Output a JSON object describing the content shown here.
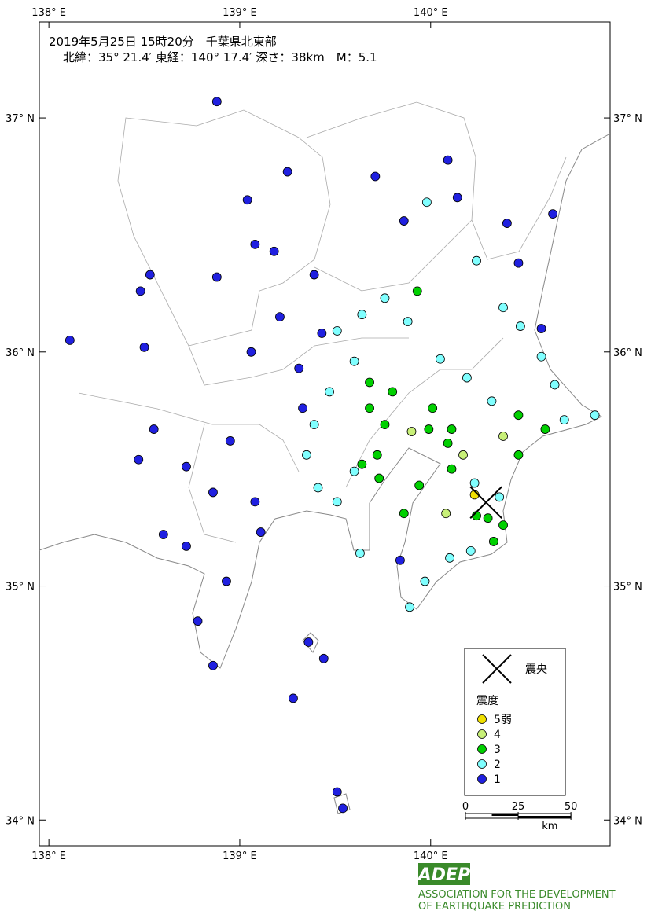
{
  "header": {
    "line1": "2019年5月25日 15時20分　千葉県北東部",
    "line2": "北緯：35° 21.4′ 東経：140° 17.4′ 深さ：38km　M：5.1"
  },
  "map": {
    "xlim": [
      137.95,
      140.94
    ],
    "ylim": [
      33.89,
      37.41
    ],
    "xticks": [
      {
        "value": 138,
        "label": "138° E"
      },
      {
        "value": 139,
        "label": "139° E"
      },
      {
        "value": 140,
        "label": "140° E"
      }
    ],
    "yticks": [
      {
        "value": 37,
        "label": "37° N"
      },
      {
        "value": 36,
        "label": "36° N"
      },
      {
        "value": 35,
        "label": "35° N"
      },
      {
        "value": 34,
        "label": "34° N"
      }
    ],
    "epicenter": {
      "lon": 140.29,
      "lat": 35.357
    },
    "stations": [
      {
        "lon": 138.88,
        "lat": 37.07,
        "intensity": "1"
      },
      {
        "lon": 139.25,
        "lat": 36.77,
        "intensity": "1"
      },
      {
        "lon": 139.71,
        "lat": 36.75,
        "intensity": "1"
      },
      {
        "lon": 140.09,
        "lat": 36.82,
        "intensity": "1"
      },
      {
        "lon": 140.14,
        "lat": 36.66,
        "intensity": "1"
      },
      {
        "lon": 139.04,
        "lat": 36.65,
        "intensity": "1"
      },
      {
        "lon": 139.08,
        "lat": 36.46,
        "intensity": "1"
      },
      {
        "lon": 139.18,
        "lat": 36.43,
        "intensity": "1"
      },
      {
        "lon": 138.53,
        "lat": 36.33,
        "intensity": "1"
      },
      {
        "lon": 138.48,
        "lat": 36.26,
        "intensity": "1"
      },
      {
        "lon": 138.88,
        "lat": 36.32,
        "intensity": "1"
      },
      {
        "lon": 138.11,
        "lat": 36.05,
        "intensity": "1"
      },
      {
        "lon": 138.5,
        "lat": 36.02,
        "intensity": "1"
      },
      {
        "lon": 139.06,
        "lat": 36.0,
        "intensity": "1"
      },
      {
        "lon": 139.21,
        "lat": 36.15,
        "intensity": "1"
      },
      {
        "lon": 139.86,
        "lat": 36.56,
        "intensity": "1"
      },
      {
        "lon": 140.4,
        "lat": 36.55,
        "intensity": "1"
      },
      {
        "lon": 140.64,
        "lat": 36.59,
        "intensity": "1"
      },
      {
        "lon": 140.46,
        "lat": 36.38,
        "intensity": "1"
      },
      {
        "lon": 140.58,
        "lat": 36.1,
        "intensity": "1"
      },
      {
        "lon": 138.55,
        "lat": 35.67,
        "intensity": "1"
      },
      {
        "lon": 138.47,
        "lat": 35.54,
        "intensity": "1"
      },
      {
        "lon": 138.72,
        "lat": 35.51,
        "intensity": "1"
      },
      {
        "lon": 138.86,
        "lat": 35.4,
        "intensity": "1"
      },
      {
        "lon": 138.95,
        "lat": 35.62,
        "intensity": "1"
      },
      {
        "lon": 139.08,
        "lat": 35.36,
        "intensity": "1"
      },
      {
        "lon": 138.6,
        "lat": 35.22,
        "intensity": "1"
      },
      {
        "lon": 138.72,
        "lat": 35.17,
        "intensity": "1"
      },
      {
        "lon": 139.11,
        "lat": 35.23,
        "intensity": "1"
      },
      {
        "lon": 138.93,
        "lat": 35.02,
        "intensity": "1"
      },
      {
        "lon": 138.78,
        "lat": 34.85,
        "intensity": "1"
      },
      {
        "lon": 138.86,
        "lat": 34.66,
        "intensity": "1"
      },
      {
        "lon": 139.36,
        "lat": 34.76,
        "intensity": "1"
      },
      {
        "lon": 139.44,
        "lat": 34.69,
        "intensity": "1"
      },
      {
        "lon": 139.28,
        "lat": 34.52,
        "intensity": "1"
      },
      {
        "lon": 139.51,
        "lat": 34.12,
        "intensity": "1"
      },
      {
        "lon": 139.54,
        "lat": 34.05,
        "intensity": "1"
      },
      {
        "lon": 139.84,
        "lat": 35.11,
        "intensity": "1"
      },
      {
        "lon": 139.39,
        "lat": 36.33,
        "intensity": "1"
      },
      {
        "lon": 139.43,
        "lat": 36.08,
        "intensity": "1"
      },
      {
        "lon": 139.31,
        "lat": 35.93,
        "intensity": "1"
      },
      {
        "lon": 139.33,
        "lat": 35.76,
        "intensity": "1"
      },
      {
        "lon": 139.98,
        "lat": 36.64,
        "intensity": "2"
      },
      {
        "lon": 140.24,
        "lat": 36.39,
        "intensity": "2"
      },
      {
        "lon": 140.38,
        "lat": 36.19,
        "intensity": "2"
      },
      {
        "lon": 140.47,
        "lat": 36.11,
        "intensity": "2"
      },
      {
        "lon": 140.58,
        "lat": 35.98,
        "intensity": "2"
      },
      {
        "lon": 140.65,
        "lat": 35.86,
        "intensity": "2"
      },
      {
        "lon": 140.7,
        "lat": 35.71,
        "intensity": "2"
      },
      {
        "lon": 140.86,
        "lat": 35.73,
        "intensity": "2"
      },
      {
        "lon": 140.32,
        "lat": 35.79,
        "intensity": "2"
      },
      {
        "lon": 140.19,
        "lat": 35.89,
        "intensity": "2"
      },
      {
        "lon": 140.05,
        "lat": 35.97,
        "intensity": "2"
      },
      {
        "lon": 139.88,
        "lat": 36.13,
        "intensity": "2"
      },
      {
        "lon": 139.76,
        "lat": 36.23,
        "intensity": "2"
      },
      {
        "lon": 139.64,
        "lat": 36.16,
        "intensity": "2"
      },
      {
        "lon": 139.51,
        "lat": 36.09,
        "intensity": "2"
      },
      {
        "lon": 139.6,
        "lat": 35.96,
        "intensity": "2"
      },
      {
        "lon": 139.47,
        "lat": 35.83,
        "intensity": "2"
      },
      {
        "lon": 139.39,
        "lat": 35.69,
        "intensity": "2"
      },
      {
        "lon": 139.35,
        "lat": 35.56,
        "intensity": "2"
      },
      {
        "lon": 139.41,
        "lat": 35.42,
        "intensity": "2"
      },
      {
        "lon": 139.51,
        "lat": 35.36,
        "intensity": "2"
      },
      {
        "lon": 139.6,
        "lat": 35.49,
        "intensity": "2"
      },
      {
        "lon": 139.63,
        "lat": 35.14,
        "intensity": "2"
      },
      {
        "lon": 139.89,
        "lat": 34.91,
        "intensity": "2"
      },
      {
        "lon": 139.97,
        "lat": 35.02,
        "intensity": "2"
      },
      {
        "lon": 140.1,
        "lat": 35.12,
        "intensity": "2"
      },
      {
        "lon": 140.21,
        "lat": 35.15,
        "intensity": "2"
      },
      {
        "lon": 140.36,
        "lat": 35.38,
        "intensity": "2"
      },
      {
        "lon": 140.23,
        "lat": 35.44,
        "intensity": "2"
      },
      {
        "lon": 139.93,
        "lat": 36.26,
        "intensity": "3"
      },
      {
        "lon": 139.8,
        "lat": 35.83,
        "intensity": "3"
      },
      {
        "lon": 139.68,
        "lat": 35.76,
        "intensity": "3"
      },
      {
        "lon": 139.76,
        "lat": 35.69,
        "intensity": "3"
      },
      {
        "lon": 139.72,
        "lat": 35.56,
        "intensity": "3"
      },
      {
        "lon": 139.64,
        "lat": 35.52,
        "intensity": "3"
      },
      {
        "lon": 139.68,
        "lat": 35.87,
        "intensity": "3"
      },
      {
        "lon": 140.01,
        "lat": 35.76,
        "intensity": "3"
      },
      {
        "lon": 140.11,
        "lat": 35.67,
        "intensity": "3"
      },
      {
        "lon": 140.09,
        "lat": 35.61,
        "intensity": "3"
      },
      {
        "lon": 140.11,
        "lat": 35.5,
        "intensity": "3"
      },
      {
        "lon": 139.94,
        "lat": 35.43,
        "intensity": "3"
      },
      {
        "lon": 139.86,
        "lat": 35.31,
        "intensity": "3"
      },
      {
        "lon": 140.46,
        "lat": 35.56,
        "intensity": "3"
      },
      {
        "lon": 140.6,
        "lat": 35.67,
        "intensity": "3"
      },
      {
        "lon": 140.46,
        "lat": 35.73,
        "intensity": "3"
      },
      {
        "lon": 140.38,
        "lat": 35.26,
        "intensity": "3"
      },
      {
        "lon": 140.33,
        "lat": 35.19,
        "intensity": "3"
      },
      {
        "lon": 140.24,
        "lat": 35.3,
        "intensity": "3"
      },
      {
        "lon": 140.3,
        "lat": 35.29,
        "intensity": "3"
      },
      {
        "lon": 139.99,
        "lat": 35.67,
        "intensity": "3"
      },
      {
        "lon": 139.73,
        "lat": 35.46,
        "intensity": "3"
      },
      {
        "lon": 140.08,
        "lat": 35.31,
        "intensity": "4"
      },
      {
        "lon": 140.38,
        "lat": 35.64,
        "intensity": "4"
      },
      {
        "lon": 140.17,
        "lat": 35.56,
        "intensity": "4"
      },
      {
        "lon": 139.9,
        "lat": 35.66,
        "intensity": "4"
      },
      {
        "lon": 140.23,
        "lat": 35.39,
        "intensity": "5弱"
      }
    ]
  },
  "legend": {
    "epicenter_label": "震央",
    "title": "震度",
    "classes": [
      {
        "label": "5弱",
        "color": "#f0e000"
      },
      {
        "label": "4",
        "color": "#c8f078"
      },
      {
        "label": "3",
        "color": "#00d000"
      },
      {
        "label": "2",
        "color": "#80ffff"
      },
      {
        "label": "1",
        "color": "#2020e0"
      }
    ]
  },
  "scale": {
    "ticks": [
      0,
      25,
      50
    ],
    "unit": "km"
  },
  "footer": {
    "logo": "ADEP",
    "org_line1": "ASSOCIATION FOR THE DEVELOPMENT",
    "org_line2": "OF EARTHQUAKE PREDICTION"
  }
}
